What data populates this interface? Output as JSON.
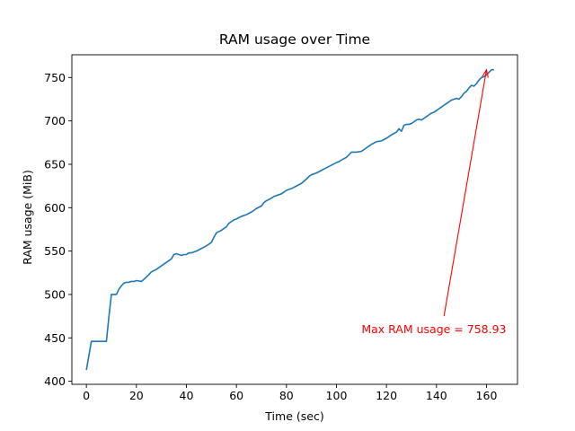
{
  "chart_data": {
    "type": "line",
    "title": "RAM usage over Time",
    "xlabel": "Time (sec)",
    "ylabel": "RAM usage (MiB)",
    "xlim": [
      -5.8,
      172.4
    ],
    "ylim": [
      396.5,
      776.2
    ],
    "xticks": [
      0,
      20,
      40,
      60,
      80,
      100,
      120,
      140,
      160
    ],
    "yticks": [
      400,
      450,
      500,
      550,
      600,
      650,
      700,
      750
    ],
    "grid": false,
    "line_color": "#1f77b4",
    "series": [
      {
        "name": "RAM usage",
        "x": [
          0,
          2,
          4,
          6,
          7,
          8,
          9,
          10,
          11,
          12,
          13,
          14,
          15,
          16,
          17,
          18,
          19,
          20,
          22,
          24,
          26,
          28,
          30,
          32,
          34,
          35,
          36,
          37,
          38,
          39,
          40,
          41,
          42,
          44,
          46,
          48,
          50,
          51,
          52,
          54,
          56,
          57,
          58,
          59,
          60,
          62,
          64,
          66,
          68,
          70,
          71,
          72,
          74,
          75,
          76,
          77,
          78,
          80,
          82,
          84,
          86,
          88,
          89,
          90,
          92,
          94,
          96,
          98,
          100,
          101,
          102,
          104,
          106,
          108,
          110,
          112,
          113,
          114,
          116,
          118,
          120,
          121,
          122,
          124,
          125,
          126,
          127,
          128,
          129,
          130,
          131,
          132,
          133,
          134,
          135,
          136,
          137,
          138,
          139,
          140,
          141,
          142,
          143,
          144,
          145,
          146,
          147,
          148,
          149,
          150,
          151,
          152,
          153,
          154,
          155,
          156,
          157,
          158,
          159,
          160,
          161,
          162,
          163
        ],
        "y": [
          413,
          446,
          446,
          446,
          446,
          446,
          474,
          500,
          500,
          500,
          506,
          510,
          513,
          514,
          514,
          515,
          515,
          516,
          515,
          520,
          526,
          529,
          533,
          537,
          541,
          546,
          547,
          546,
          545,
          546,
          546,
          548,
          548,
          550,
          553,
          556,
          560,
          566,
          571,
          574,
          578,
          582,
          584,
          586,
          587,
          590,
          592,
          595,
          599,
          602,
          606,
          608,
          611,
          613,
          614,
          615,
          616,
          620,
          622,
          625,
          628,
          633,
          636,
          638,
          640,
          643,
          646,
          649,
          652,
          653,
          655,
          658,
          664,
          664,
          665,
          669,
          671,
          673,
          676,
          677,
          680,
          682,
          684,
          687,
          691,
          688,
          695,
          696,
          696,
          697,
          699,
          701,
          702,
          701,
          703,
          705,
          707,
          709,
          710,
          712,
          714,
          716,
          718,
          720,
          722,
          724,
          725,
          726,
          725,
          728,
          732,
          734,
          738,
          741,
          740,
          743,
          747,
          750,
          751,
          753,
          756,
          758.93,
          758.93
        ]
      }
    ],
    "annotations": [
      {
        "text": "Max RAM usage = 758.93",
        "text_x": 110,
        "text_y": 460,
        "arrow_to_x": 160,
        "arrow_to_y": 758.93,
        "arrow_from_x": 143,
        "arrow_from_y": 475,
        "color": "#ff0000"
      }
    ]
  }
}
